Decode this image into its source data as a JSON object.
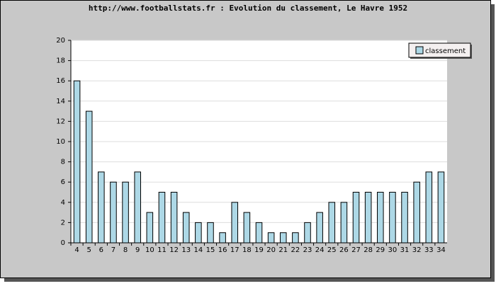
{
  "chart_data": {
    "type": "bar",
    "title": "http://www.footballstats.fr : Evolution du classement, Le Havre 1952",
    "categories": [
      "4",
      "5",
      "6",
      "7",
      "8",
      "9",
      "10",
      "11",
      "12",
      "13",
      "14",
      "15",
      "16",
      "17",
      "18",
      "19",
      "20",
      "21",
      "22",
      "23",
      "24",
      "25",
      "26",
      "27",
      "28",
      "29",
      "30",
      "31",
      "32",
      "33",
      "34"
    ],
    "series": [
      {
        "name": "classement",
        "color": "#add8e6",
        "values": [
          16,
          13,
          7,
          6,
          6,
          7,
          3,
          5,
          5,
          3,
          2,
          2,
          1,
          4,
          3,
          2,
          1,
          1,
          1,
          2,
          3,
          4,
          4,
          5,
          5,
          5,
          5,
          5,
          6,
          7,
          7
        ]
      }
    ],
    "ylim": [
      0,
      20
    ],
    "yticks": [
      0,
      2,
      4,
      6,
      8,
      10,
      12,
      14,
      16,
      18,
      20
    ],
    "grid": true,
    "legend": "top-right"
  }
}
